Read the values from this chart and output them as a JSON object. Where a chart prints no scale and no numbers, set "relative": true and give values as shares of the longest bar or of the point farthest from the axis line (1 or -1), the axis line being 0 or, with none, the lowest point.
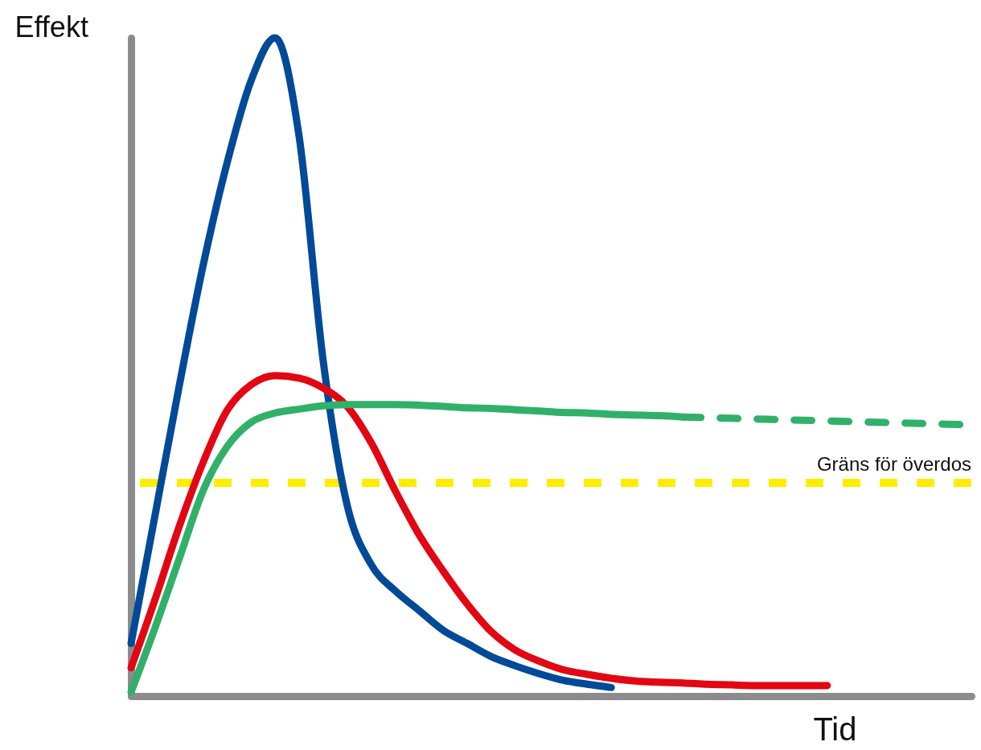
{
  "chart_data": {
    "type": "line",
    "relative": true,
    "xlabel": "Tid",
    "ylabel": "Effekt",
    "grid": false,
    "categories": [
      null,
      null,
      null,
      null,
      null,
      null,
      null,
      null,
      null,
      null,
      null,
      null,
      null,
      null,
      null,
      null,
      null,
      null,
      null,
      null,
      null,
      null,
      null,
      null,
      null,
      null,
      null,
      null,
      null,
      null,
      null,
      null,
      null,
      null,
      null,
      null
    ],
    "series": [
      {
        "color": "#004a98",
        "values": [
          0.08,
          0.275,
          0.47,
          0.654,
          0.81,
          0.935,
          1,
          0.85,
          0.51,
          0.29,
          0.2,
          0.16,
          0.13,
          0.1,
          0.08,
          0.06,
          0.046,
          0.034,
          0.024,
          0.018,
          0.013,
          null,
          null,
          null,
          null,
          null,
          null,
          null,
          null,
          null,
          null,
          null,
          null,
          null,
          null,
          null
        ]
      },
      {
        "color": "#e30613",
        "values": [
          0.043,
          0.147,
          0.257,
          0.355,
          0.434,
          0.473,
          0.487,
          0.483,
          0.468,
          0.44,
          0.385,
          0.312,
          0.245,
          0.19,
          0.14,
          0.098,
          0.07,
          0.053,
          0.04,
          0.033,
          0.027,
          0.023,
          0.021,
          0.02,
          0.018,
          0.017,
          0.016,
          0.016,
          0.016,
          0.016,
          null,
          null,
          null,
          null,
          null,
          null
        ]
      },
      {
        "color": "#31b06a",
        "values": [
          0.006,
          0.104,
          0.208,
          0.312,
          0.379,
          0.416,
          0.43,
          0.436,
          0.441,
          0.443,
          0.443,
          0.443,
          0.442,
          0.44,
          0.438,
          0.437,
          0.435,
          0.433,
          0.431,
          0.43,
          0.428,
          0.427,
          0.426,
          0.424,
          null,
          null,
          null,
          null,
          null,
          null,
          null,
          null,
          null,
          null,
          null,
          null
        ]
      },
      {
        "color": "#31b06a",
        "line_style": "dashed",
        "values": [
          null,
          null,
          null,
          null,
          null,
          null,
          null,
          null,
          null,
          null,
          null,
          null,
          null,
          null,
          null,
          null,
          null,
          null,
          null,
          null,
          null,
          null,
          null,
          0.424,
          0.423,
          0.422,
          0.421,
          0.42,
          0.419,
          0.418,
          0.417,
          0.416,
          0.415,
          0.414,
          0.413,
          0.412
        ]
      }
    ],
    "ref_lines": [
      {
        "axis": "y",
        "value": 0.324,
        "label": "Gräns för överdos",
        "color": "#ffed00",
        "line_style": "dashed"
      }
    ]
  }
}
